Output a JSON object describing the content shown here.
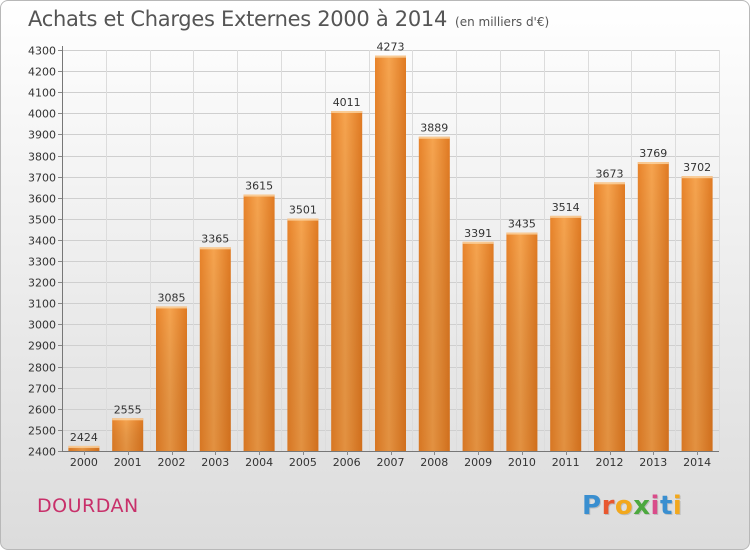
{
  "header": {
    "title": "Achats et Charges Externes 2000 à 2014",
    "subtitle": "(en milliers d'€)"
  },
  "footer": {
    "place": "DOURDAN",
    "logo_letters": [
      "P",
      "r",
      "o",
      "x",
      "i",
      "t",
      "i"
    ],
    "logo_colors": [
      "#3a8fd0",
      "#e8572f",
      "#f2a81d",
      "#4ca83e",
      "#d94c8a",
      "#3a8fd0",
      "#f2a81d"
    ]
  },
  "chart_data": {
    "type": "bar",
    "categories": [
      "2000",
      "2001",
      "2002",
      "2003",
      "2004",
      "2005",
      "2006",
      "2007",
      "2008",
      "2009",
      "2010",
      "2011",
      "2012",
      "2013",
      "2014"
    ],
    "values": [
      2424,
      2555,
      3085,
      3365,
      3615,
      3501,
      4011,
      4273,
      3889,
      3391,
      3435,
      3514,
      3673,
      3769,
      3702
    ],
    "data_labels": [
      "2424",
      "2555",
      "3085",
      "3365",
      "3615",
      "3501",
      "4011",
      "4273",
      "3889",
      "3391",
      "3435",
      "3514",
      "3673",
      "3769",
      "3702"
    ],
    "title": "Achats et Charges Externes 2000 à 2014",
    "subtitle": "(en milliers d'€)",
    "xlabel": "",
    "ylabel": "",
    "ylim": [
      2400,
      4300
    ],
    "yticks": [
      2400,
      2500,
      2600,
      2700,
      2800,
      2900,
      3000,
      3100,
      3200,
      3300,
      3400,
      3500,
      3600,
      3700,
      3800,
      3900,
      4000,
      4100,
      4200,
      4300
    ],
    "grid": true,
    "bar_color": "#f0902f",
    "legend": "none"
  }
}
